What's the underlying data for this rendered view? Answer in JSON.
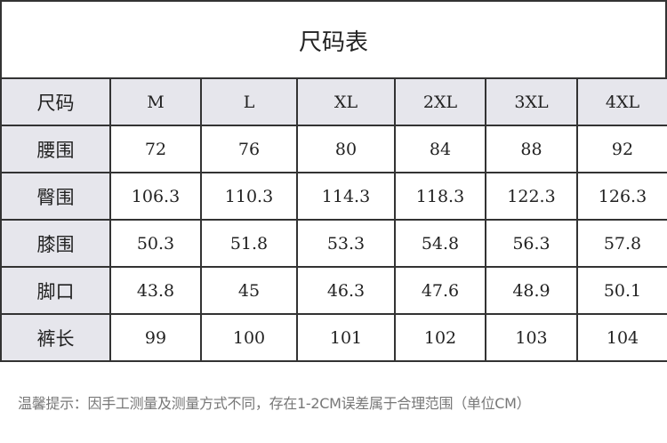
{
  "title": "尺码表",
  "header": {
    "label": "尺码",
    "sizes": [
      "M",
      "L",
      "XL",
      "2XL",
      "3XL",
      "4XL"
    ]
  },
  "rows": [
    {
      "label": "腰围",
      "values": [
        "72",
        "76",
        "80",
        "84",
        "88",
        "92"
      ]
    },
    {
      "label": "臀围",
      "values": [
        "106.3",
        "110.3",
        "114.3",
        "118.3",
        "122.3",
        "126.3"
      ]
    },
    {
      "label": "膝围",
      "values": [
        "50.3",
        "51.8",
        "53.3",
        "54.8",
        "56.3",
        "57.8"
      ]
    },
    {
      "label": "脚口",
      "values": [
        "43.8",
        "45",
        "46.3",
        "47.6",
        "48.9",
        "50.1"
      ]
    },
    {
      "label": "裤长",
      "values": [
        "99",
        "100",
        "101",
        "102",
        "103",
        "104"
      ]
    }
  ],
  "note": "温馨提示：因手工测量及测量方式不同，存在1-2CM误差属于合理范围（单位CM）",
  "colors": {
    "header_bg": "#e6e6ec",
    "border": "#333333",
    "note": "#777777"
  }
}
